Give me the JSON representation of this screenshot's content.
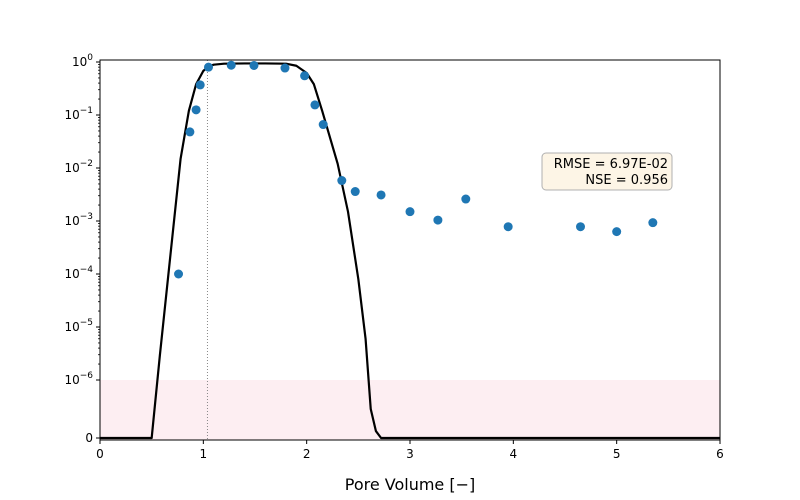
{
  "chart_data": {
    "type": "scatter",
    "xlabel": "Pore Volume [−]",
    "ylabel": "",
    "xlim": [
      0,
      6
    ],
    "yscale": "symlog",
    "x_ticks": [
      0,
      1,
      2,
      3,
      4,
      5,
      6
    ],
    "y_ticks": [
      {
        "value": 0,
        "base": "0",
        "exp": ""
      },
      {
        "value": 1e-06,
        "base": "10",
        "exp": "−6"
      },
      {
        "value": 1e-05,
        "base": "10",
        "exp": "−5"
      },
      {
        "value": 0.0001,
        "base": "10",
        "exp": "−4"
      },
      {
        "value": 0.001,
        "base": "10",
        "exp": "−3"
      },
      {
        "value": 0.01,
        "base": "10",
        "exp": "−2"
      },
      {
        "value": 0.1,
        "base": "10",
        "exp": "−1"
      },
      {
        "value": 1,
        "base": "10",
        "exp": "0"
      }
    ],
    "grid": false,
    "colors": {
      "points": "#1f77b4",
      "model": "#000000",
      "band": "#fdeef2",
      "vline": "#888888"
    },
    "observed": [
      [
        0.76,
        0.0001
      ],
      [
        0.87,
        0.048
      ],
      [
        0.93,
        0.125
      ],
      [
        0.97,
        0.37
      ],
      [
        1.05,
        0.8
      ],
      [
        1.27,
        0.87
      ],
      [
        1.49,
        0.86
      ],
      [
        1.79,
        0.77
      ],
      [
        1.98,
        0.55
      ],
      [
        2.08,
        0.155
      ],
      [
        2.16,
        0.066
      ],
      [
        2.34,
        0.0058
      ],
      [
        2.47,
        0.0036
      ],
      [
        2.72,
        0.0031
      ],
      [
        3.0,
        0.0015
      ],
      [
        3.27,
        0.00104
      ],
      [
        3.54,
        0.0026
      ],
      [
        3.95,
        0.00078
      ],
      [
        4.65,
        0.00078
      ],
      [
        5.0,
        0.00063
      ],
      [
        5.35,
        0.00093
      ]
    ],
    "model": [
      [
        0,
        0
      ],
      [
        0.5,
        0
      ],
      [
        0.58,
        3e-06
      ],
      [
        0.7,
        0.0005
      ],
      [
        0.78,
        0.015
      ],
      [
        0.86,
        0.12
      ],
      [
        0.93,
        0.38
      ],
      [
        1.0,
        0.68
      ],
      [
        1.05,
        0.82
      ],
      [
        1.1,
        0.89
      ],
      [
        1.2,
        0.93
      ],
      [
        1.4,
        0.94
      ],
      [
        1.6,
        0.94
      ],
      [
        1.8,
        0.93
      ],
      [
        1.9,
        0.85
      ],
      [
        2.0,
        0.62
      ],
      [
        2.07,
        0.38
      ],
      [
        2.15,
        0.12
      ],
      [
        2.3,
        0.012
      ],
      [
        2.4,
        0.0015
      ],
      [
        2.5,
        8e-05
      ],
      [
        2.57,
        6e-06
      ],
      [
        2.62,
        5e-07
      ],
      [
        2.67,
        1.2e-07
      ],
      [
        2.72,
        0
      ],
      [
        6,
        0
      ]
    ],
    "vline_x": 1.04,
    "band_ymax": 1e-06,
    "stats": {
      "rmse": "RMSE = 6.97E-02",
      "nse": "NSE = 0.956"
    }
  }
}
